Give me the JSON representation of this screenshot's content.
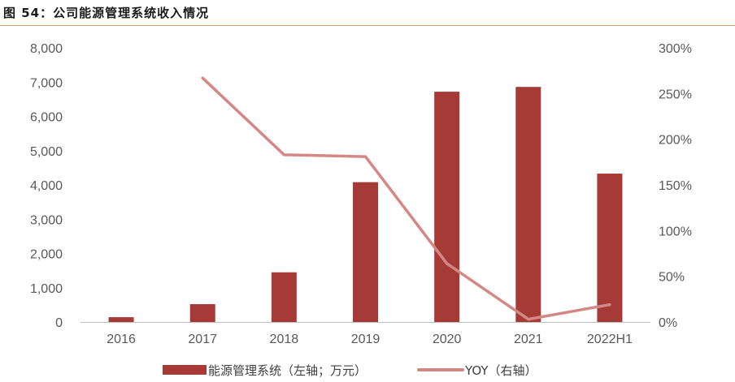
{
  "header": {
    "title": "图 54：公司能源管理系统收入情况"
  },
  "chart_data": {
    "type": "bar",
    "categories": [
      "2016",
      "2017",
      "2018",
      "2019",
      "2020",
      "2021",
      "2022H1"
    ],
    "series": [
      {
        "name": "能源管理系统（左轴；万元）",
        "type": "bar",
        "axis": "left",
        "color": "#a53a36",
        "values": [
          140,
          520,
          1450,
          4080,
          6720,
          6860,
          4330
        ]
      },
      {
        "name": "YOY（右轴）",
        "type": "line",
        "axis": "right",
        "color": "#d48885",
        "values": [
          null,
          2.67,
          1.83,
          1.81,
          0.64,
          0.03,
          0.19
        ]
      }
    ],
    "left_axis": {
      "ylim": [
        0,
        8000
      ],
      "ticks": [
        "0",
        "1,000",
        "2,000",
        "3,000",
        "4,000",
        "5,000",
        "6,000",
        "7,000",
        "8,000"
      ]
    },
    "right_axis": {
      "ylim": [
        0,
        3
      ],
      "ticks": [
        "0%",
        "50%",
        "100%",
        "150%",
        "200%",
        "250%",
        "300%"
      ]
    },
    "grid": false,
    "legend_position": "bottom"
  }
}
